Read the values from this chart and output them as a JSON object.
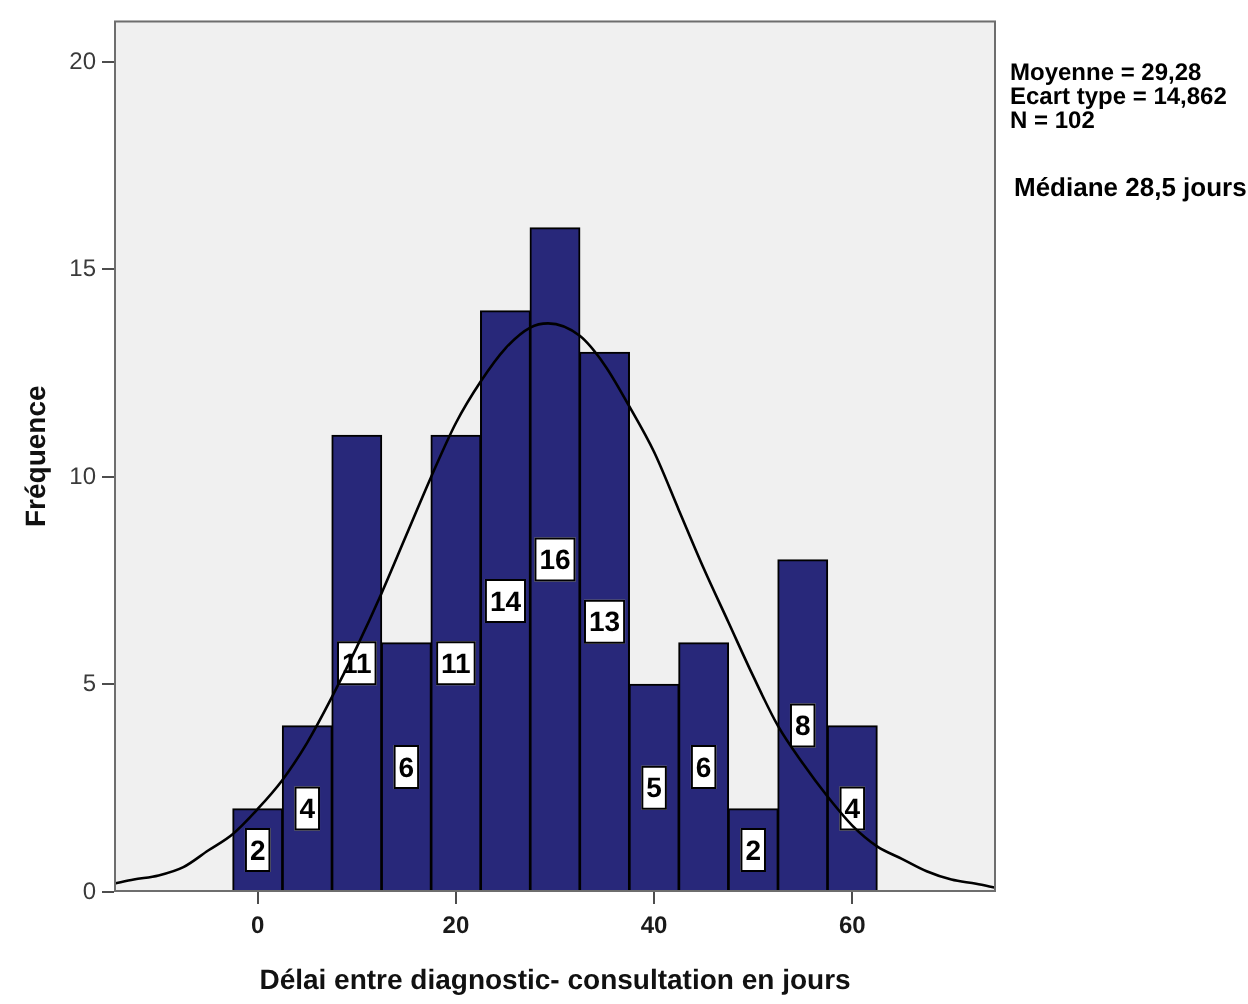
{
  "chart_data": {
    "type": "histogram",
    "xlabel": "Délai entre diagnostic- consultation en jours",
    "ylabel": "Fréquence",
    "bins": [
      -2.5,
      2.5,
      7.5,
      12.5,
      17.5,
      22.5,
      27.5,
      32.5,
      37.5,
      42.5,
      47.5,
      52.5,
      57.5,
      62.5
    ],
    "values": [
      2,
      4,
      11,
      6,
      11,
      14,
      16,
      13,
      5,
      6,
      2,
      8,
      4
    ],
    "color": "#28287a",
    "value_labels": [
      "2",
      "4",
      "11",
      "6",
      "11",
      "14",
      "16",
      "13",
      "5",
      "6",
      "2",
      "8",
      "4"
    ],
    "series": [
      {
        "type": "line",
        "color": "#000000",
        "x": [
          -14.5,
          -12.5,
          -10,
          -7.5,
          -5,
          -2.5,
          0,
          2.5,
          5,
          7.5,
          10,
          12.5,
          15,
          17.5,
          20,
          22.5,
          25,
          27.5,
          29.3,
          32.5,
          35,
          37.5,
          40,
          42.5,
          45,
          47.5,
          50,
          52.5,
          55,
          57.5,
          60,
          62.5,
          65,
          67.5,
          70,
          72.5,
          74.5
        ],
        "values": [
          0.2,
          0.3,
          0.4,
          0.6,
          1.0,
          1.4,
          2.0,
          2.7,
          3.6,
          4.7,
          5.9,
          7.2,
          8.6,
          10.0,
          11.3,
          12.3,
          13.1,
          13.6,
          13.7,
          13.4,
          12.7,
          11.7,
          10.6,
          9.2,
          7.8,
          6.5,
          5.2,
          4.0,
          3.1,
          2.3,
          1.6,
          1.1,
          0.8,
          0.5,
          0.3,
          0.2,
          0.1
        ]
      }
    ],
    "xlim": [
      -14.5,
      74.5
    ],
    "xticks": [
      0,
      20,
      40,
      60
    ],
    "ylim": [
      0,
      21
    ],
    "yticks": [
      0,
      5,
      10,
      15,
      20
    ],
    "annotations": [
      "Moyenne = 29,28",
      "Ecart type = 14,862",
      "N = 102",
      "Médiane 28,5 jours"
    ]
  }
}
